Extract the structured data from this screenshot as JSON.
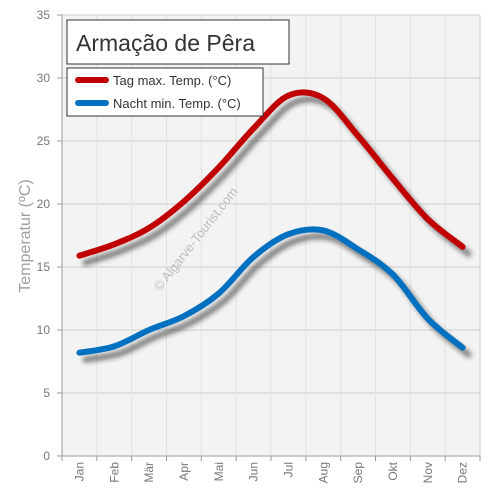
{
  "chart_data": {
    "type": "line",
    "title": "Armação de Pêra",
    "xlabel": "",
    "ylabel": "Temperatur (ºC)",
    "categories": [
      "Jan",
      "Feb",
      "Mär",
      "Apr",
      "Mai",
      "Jun",
      "Jul",
      "Aug",
      "Sep",
      "Okt",
      "Nov",
      "Dez"
    ],
    "ylim": [
      0,
      35
    ],
    "yticks": [
      0,
      5,
      10,
      15,
      20,
      25,
      30,
      35
    ],
    "series": [
      {
        "name": "Tag max. Temp. (°C)",
        "color": "#c00000",
        "values": [
          15.9,
          16.8,
          18.1,
          20.2,
          22.9,
          26.0,
          28.6,
          28.4,
          25.4,
          22.0,
          18.8,
          16.6
        ]
      },
      {
        "name": "Nacht min. Temp. (°C)",
        "color": "#0070c0",
        "values": [
          8.2,
          8.7,
          10.0,
          11.1,
          12.9,
          15.8,
          17.6,
          17.9,
          16.4,
          14.4,
          10.9,
          8.6
        ]
      }
    ],
    "grid": true,
    "legend_position": "top-left",
    "watermark": "© Algarve-Tourist.com"
  }
}
